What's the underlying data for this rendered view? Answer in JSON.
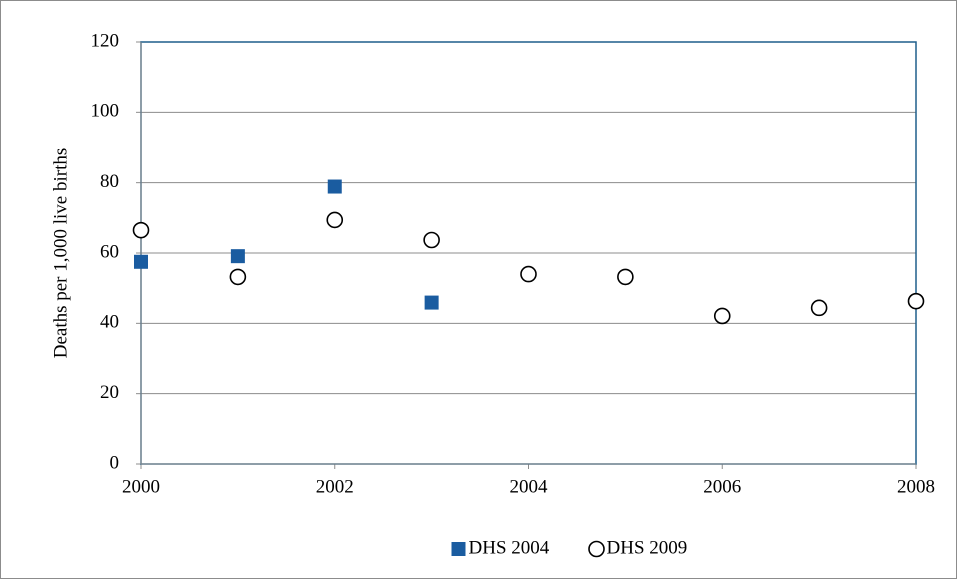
{
  "chart_data": {
    "type": "scatter",
    "y_label": "Deaths per 1,000 live births",
    "xlim": [
      2000,
      2008
    ],
    "xticks": [
      2000,
      2002,
      2004,
      2006,
      2008
    ],
    "ylim": [
      0,
      120
    ],
    "yticks": [
      0,
      20,
      40,
      60,
      80,
      100,
      120
    ],
    "grid": true,
    "legend": "bottom",
    "series": [
      {
        "name": "DHS 2004",
        "color": "#1a5ca0",
        "marker": "square",
        "x": [
          2000,
          2001,
          2002,
          2003
        ],
        "values": [
          57.5,
          59.1,
          78.9,
          45.9
        ]
      },
      {
        "name": "DHS 2009",
        "color": "#000000",
        "marker": "circle-open",
        "x": [
          2000,
          2001,
          2002,
          2003,
          2004,
          2005,
          2006,
          2007,
          2008
        ],
        "values": [
          66.5,
          53.2,
          69.4,
          63.7,
          54.0,
          53.2,
          42.1,
          44.4,
          46.3
        ]
      }
    ]
  }
}
